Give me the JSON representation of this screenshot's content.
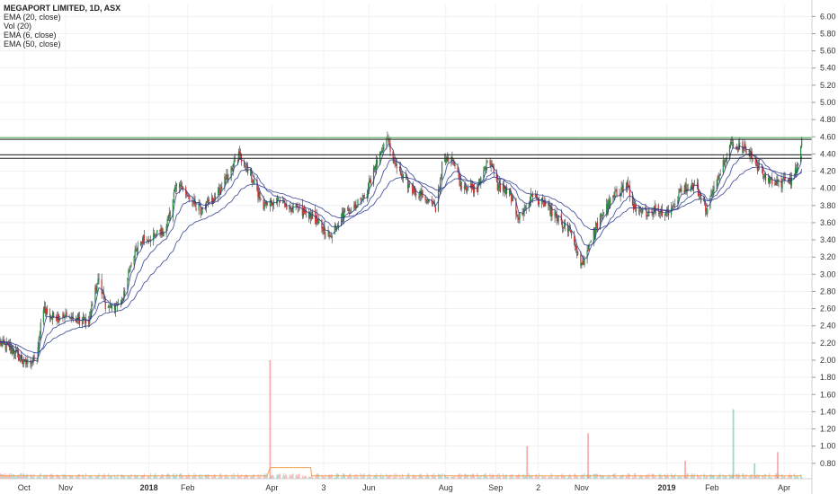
{
  "header": {
    "title": "MEGAPORT LIMITED, 1D, ASX",
    "indicators": [
      "EMA (20, close)",
      "Vol (20)",
      "EMA (6, close)",
      "EMA (50, close)"
    ]
  },
  "colors": {
    "up": "#26a69a",
    "down": "#ef5350",
    "candle_up": "#1f8c3c",
    "candle_down": "#d32f2f",
    "ema": "#2c3a8c",
    "vol_ma": "#f2a25c",
    "last_price": "#4caf50"
  },
  "chart_data": {
    "type": "candlestick",
    "title": "MEGAPORT LIMITED, 1D, ASX",
    "y_ticks": [
      "6.00",
      "5.80",
      "5.60",
      "5.40",
      "5.20",
      "5.00",
      "4.80",
      "4.60",
      "4.40",
      "4.20",
      "4.00",
      "3.80",
      "3.60",
      "3.40",
      "3.20",
      "3.00",
      "2.80",
      "2.60",
      "2.40",
      "2.20",
      "2.00",
      "1.80",
      "1.60",
      "1.40",
      "1.20",
      "1.00",
      "0.80"
    ],
    "ylim": [
      0.62,
      6.15
    ],
    "x_ticks": [
      "Oct",
      "Nov",
      "2018",
      "Feb",
      "Apr",
      "3",
      "Jun",
      "Aug",
      "Sep",
      "2",
      "Nov",
      "2019",
      "Feb",
      "Apr"
    ],
    "x_tick_days": [
      0,
      45,
      135,
      177,
      268,
      324,
      373,
      456,
      510,
      556,
      603,
      695,
      744,
      822
    ],
    "x_tick_bold": [
      "2018",
      "2019"
    ],
    "x_range_days": [
      -26,
      852
    ],
    "price_path": [
      [
        -26,
        2.2
      ],
      [
        -10,
        2.1
      ],
      [
        0,
        1.96
      ],
      [
        14,
        2.0
      ],
      [
        20,
        2.65
      ],
      [
        28,
        2.5
      ],
      [
        45,
        2.5
      ],
      [
        70,
        2.45
      ],
      [
        80,
        2.95
      ],
      [
        90,
        2.58
      ],
      [
        105,
        2.65
      ],
      [
        115,
        3.12
      ],
      [
        128,
        3.4
      ],
      [
        138,
        3.45
      ],
      [
        150,
        3.48
      ],
      [
        158,
        3.7
      ],
      [
        165,
        4.1
      ],
      [
        178,
        3.9
      ],
      [
        190,
        3.75
      ],
      [
        205,
        3.85
      ],
      [
        218,
        4.1
      ],
      [
        232,
        4.38
      ],
      [
        245,
        4.18
      ],
      [
        258,
        3.8
      ],
      [
        275,
        3.85
      ],
      [
        295,
        3.75
      ],
      [
        310,
        3.7
      ],
      [
        322,
        3.55
      ],
      [
        330,
        3.45
      ],
      [
        345,
        3.7
      ],
      [
        358,
        3.8
      ],
      [
        372,
        4.0
      ],
      [
        385,
        4.4
      ],
      [
        392,
        4.57
      ],
      [
        402,
        4.25
      ],
      [
        418,
        4.0
      ],
      [
        432,
        3.92
      ],
      [
        445,
        3.75
      ],
      [
        452,
        4.25
      ],
      [
        462,
        4.42
      ],
      [
        472,
        4.05
      ],
      [
        490,
        3.98
      ],
      [
        502,
        4.38
      ],
      [
        512,
        4.02
      ],
      [
        525,
        3.95
      ],
      [
        535,
        3.65
      ],
      [
        550,
        3.92
      ],
      [
        565,
        3.8
      ],
      [
        580,
        3.6
      ],
      [
        592,
        3.45
      ],
      [
        603,
        3.1
      ],
      [
        612,
        3.38
      ],
      [
        625,
        3.7
      ],
      [
        638,
        3.9
      ],
      [
        652,
        4.05
      ],
      [
        662,
        3.7
      ],
      [
        682,
        3.75
      ],
      [
        698,
        3.72
      ],
      [
        712,
        4.0
      ],
      [
        725,
        4.05
      ],
      [
        738,
        3.75
      ],
      [
        755,
        4.28
      ],
      [
        765,
        4.52
      ],
      [
        780,
        4.46
      ],
      [
        792,
        4.28
      ],
      [
        802,
        4.12
      ],
      [
        815,
        4.05
      ],
      [
        828,
        4.08
      ],
      [
        835,
        4.2
      ],
      [
        841,
        4.59
      ]
    ],
    "last_price": "4.59",
    "resistance_levels": [
      {
        "value": 4.57,
        "label": "4.57"
      },
      {
        "value": 4.39,
        "label": "4.39"
      },
      {
        "value": 4.35,
        "label": "4.35"
      }
    ],
    "volume_spikes": [
      {
        "day": 266,
        "value": 2.0,
        "up": false
      },
      {
        "day": 544,
        "value": 1.0,
        "up": false
      },
      {
        "day": 610,
        "value": 1.15,
        "up": false
      },
      {
        "day": 715,
        "value": 0.83,
        "up": false
      },
      {
        "day": 767,
        "value": 1.43,
        "up": true
      },
      {
        "day": 815,
        "value": 0.93,
        "up": false
      },
      {
        "day": 790,
        "value": 0.8,
        "up": true
      }
    ],
    "volume_base": 0.62
  }
}
